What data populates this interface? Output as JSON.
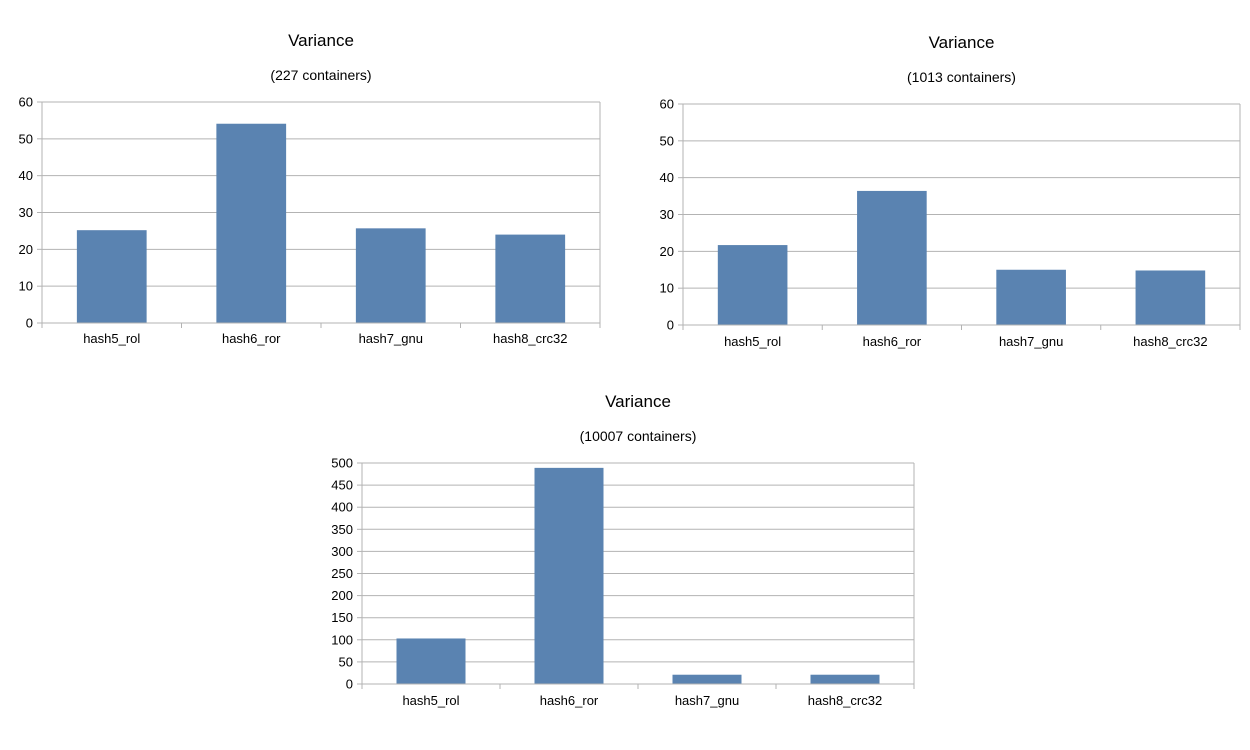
{
  "colors": {
    "bar": "#5a83b1",
    "grid": "#b3b3b3",
    "axis": "#b3b3b3",
    "text": "#000000",
    "background": "#ffffff"
  },
  "chart_data": [
    {
      "type": "bar",
      "title": "Variance",
      "subtitle": "(227 containers)",
      "xlabel": "",
      "ylabel": "",
      "categories": [
        "hash5_rol",
        "hash6_ror",
        "hash7_gnu",
        "hash8_crc32"
      ],
      "values": [
        25.2,
        54.1,
        25.7,
        24.0
      ],
      "ylim": [
        0,
        60
      ],
      "yticks": [
        0,
        10,
        20,
        30,
        40,
        50,
        60
      ],
      "grid": true,
      "legend": "none"
    },
    {
      "type": "bar",
      "title": "Variance",
      "subtitle": "(1013 containers)",
      "xlabel": "",
      "ylabel": "",
      "categories": [
        "hash5_rol",
        "hash6_ror",
        "hash7_gnu",
        "hash8_crc32"
      ],
      "values": [
        21.7,
        36.4,
        15.0,
        14.8
      ],
      "ylim": [
        0,
        60
      ],
      "yticks": [
        0,
        10,
        20,
        30,
        40,
        50,
        60
      ],
      "grid": true,
      "legend": "none"
    },
    {
      "type": "bar",
      "title": "Variance",
      "subtitle": "(10007 containers)",
      "xlabel": "",
      "ylabel": "",
      "categories": [
        "hash5_rol",
        "hash6_ror",
        "hash7_gnu",
        "hash8_crc32"
      ],
      "values": [
        103,
        489,
        21,
        21
      ],
      "ylim": [
        0,
        500
      ],
      "yticks": [
        0,
        50,
        100,
        150,
        200,
        250,
        300,
        350,
        400,
        450,
        500
      ],
      "grid": true,
      "legend": "none"
    }
  ]
}
